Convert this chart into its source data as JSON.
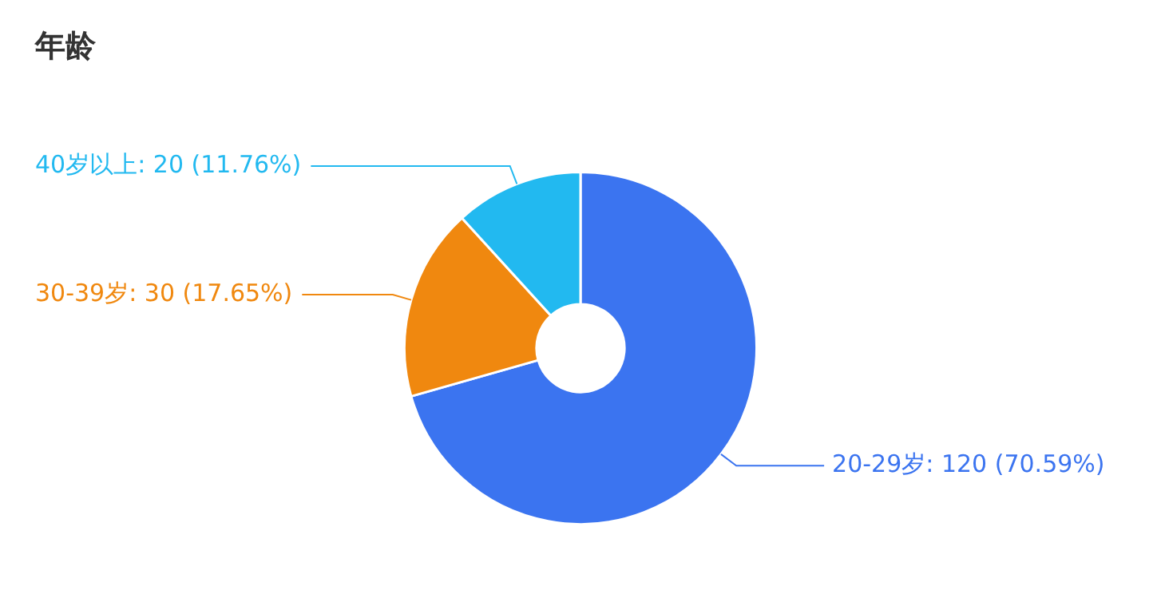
{
  "chart_data": {
    "type": "donut",
    "title": "年龄",
    "categories": [
      "20-29岁",
      "30-39岁",
      "40岁以上"
    ],
    "values": [
      120,
      30,
      20
    ],
    "colors": [
      "#3b74f0",
      "#f0880f",
      "#22b9f0"
    ],
    "value_labels": [
      ": 120 (70.59%)",
      ": 30 (17.65%)",
      ": 20 (11.76%)"
    ],
    "legend": false
  }
}
